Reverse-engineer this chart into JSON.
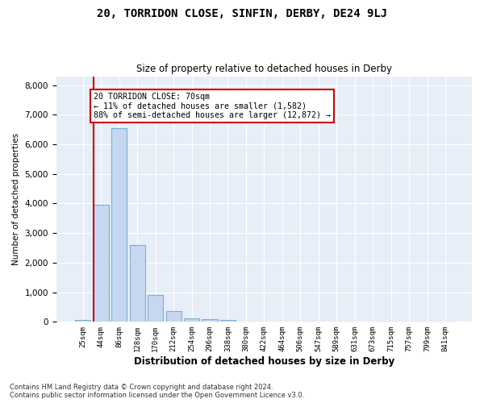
{
  "title_line1": "20, TORRIDON CLOSE, SINFIN, DERBY, DE24 9LJ",
  "title_line2": "Size of property relative to detached houses in Derby",
  "xlabel": "Distribution of detached houses by size in Derby",
  "ylabel": "Number of detached properties",
  "bar_labels": [
    "25sqm",
    "44sqm",
    "86sqm",
    "128sqm",
    "170sqm",
    "212sqm",
    "254sqm",
    "296sqm",
    "338sqm",
    "380sqm",
    "422sqm",
    "464sqm",
    "506sqm",
    "547sqm",
    "589sqm",
    "631sqm",
    "673sqm",
    "715sqm",
    "757sqm",
    "799sqm",
    "841sqm"
  ],
  "bar_values": [
    50,
    3950,
    6550,
    2600,
    900,
    350,
    130,
    80,
    50,
    0,
    0,
    0,
    0,
    0,
    0,
    0,
    0,
    0,
    0,
    0,
    0
  ],
  "bar_color": "#c5d8f0",
  "bar_edge_color": "#7bafd4",
  "highlight_line_color": "#cc0000",
  "annotation_text": "20 TORRIDON CLOSE: 70sqm\n← 11% of detached houses are smaller (1,582)\n88% of semi-detached houses are larger (12,872) →",
  "annotation_box_color": "#ffffff",
  "annotation_box_edge": "#cc0000",
  "ylim": [
    0,
    8300
  ],
  "yticks": [
    0,
    1000,
    2000,
    3000,
    4000,
    5000,
    6000,
    7000,
    8000
  ],
  "footnote": "Contains HM Land Registry data © Crown copyright and database right 2024.\nContains public sector information licensed under the Open Government Licence v3.0.",
  "background_color": "#ffffff",
  "plot_bg_color": "#e8eef8",
  "grid_color": "#ffffff",
  "title1_fontsize": 10,
  "title2_fontsize": 8.5
}
